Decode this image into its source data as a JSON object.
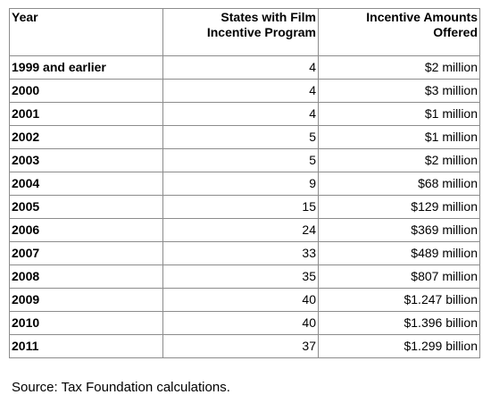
{
  "table": {
    "headers": {
      "year": "Year",
      "states": "States with Film Incentive Program",
      "amounts": "Incentive Amounts Offered"
    },
    "rows": [
      {
        "year": "1999 and earlier",
        "states": "4",
        "amount": "$2 million"
      },
      {
        "year": "2000",
        "states": "4",
        "amount": "$3 million"
      },
      {
        "year": "2001",
        "states": "4",
        "amount": "$1 million"
      },
      {
        "year": "2002",
        "states": "5",
        "amount": "$1 million"
      },
      {
        "year": "2003",
        "states": "5",
        "amount": "$2 million"
      },
      {
        "year": "2004",
        "states": "9",
        "amount": "$68 million"
      },
      {
        "year": "2005",
        "states": "15",
        "amount": "$129 million"
      },
      {
        "year": "2006",
        "states": "24",
        "amount": "$369 million"
      },
      {
        "year": "2007",
        "states": "33",
        "amount": "$489 million"
      },
      {
        "year": "2008",
        "states": "35",
        "amount": "$807 million"
      },
      {
        "year": "2009",
        "states": "40",
        "amount": "$1.247 billion"
      },
      {
        "year": "2010",
        "states": "40",
        "amount": "$1.396 billion"
      },
      {
        "year": "2011",
        "states": "37",
        "amount": "$1.299 billion"
      }
    ]
  },
  "source_note": "Source: Tax Foundation calculations."
}
